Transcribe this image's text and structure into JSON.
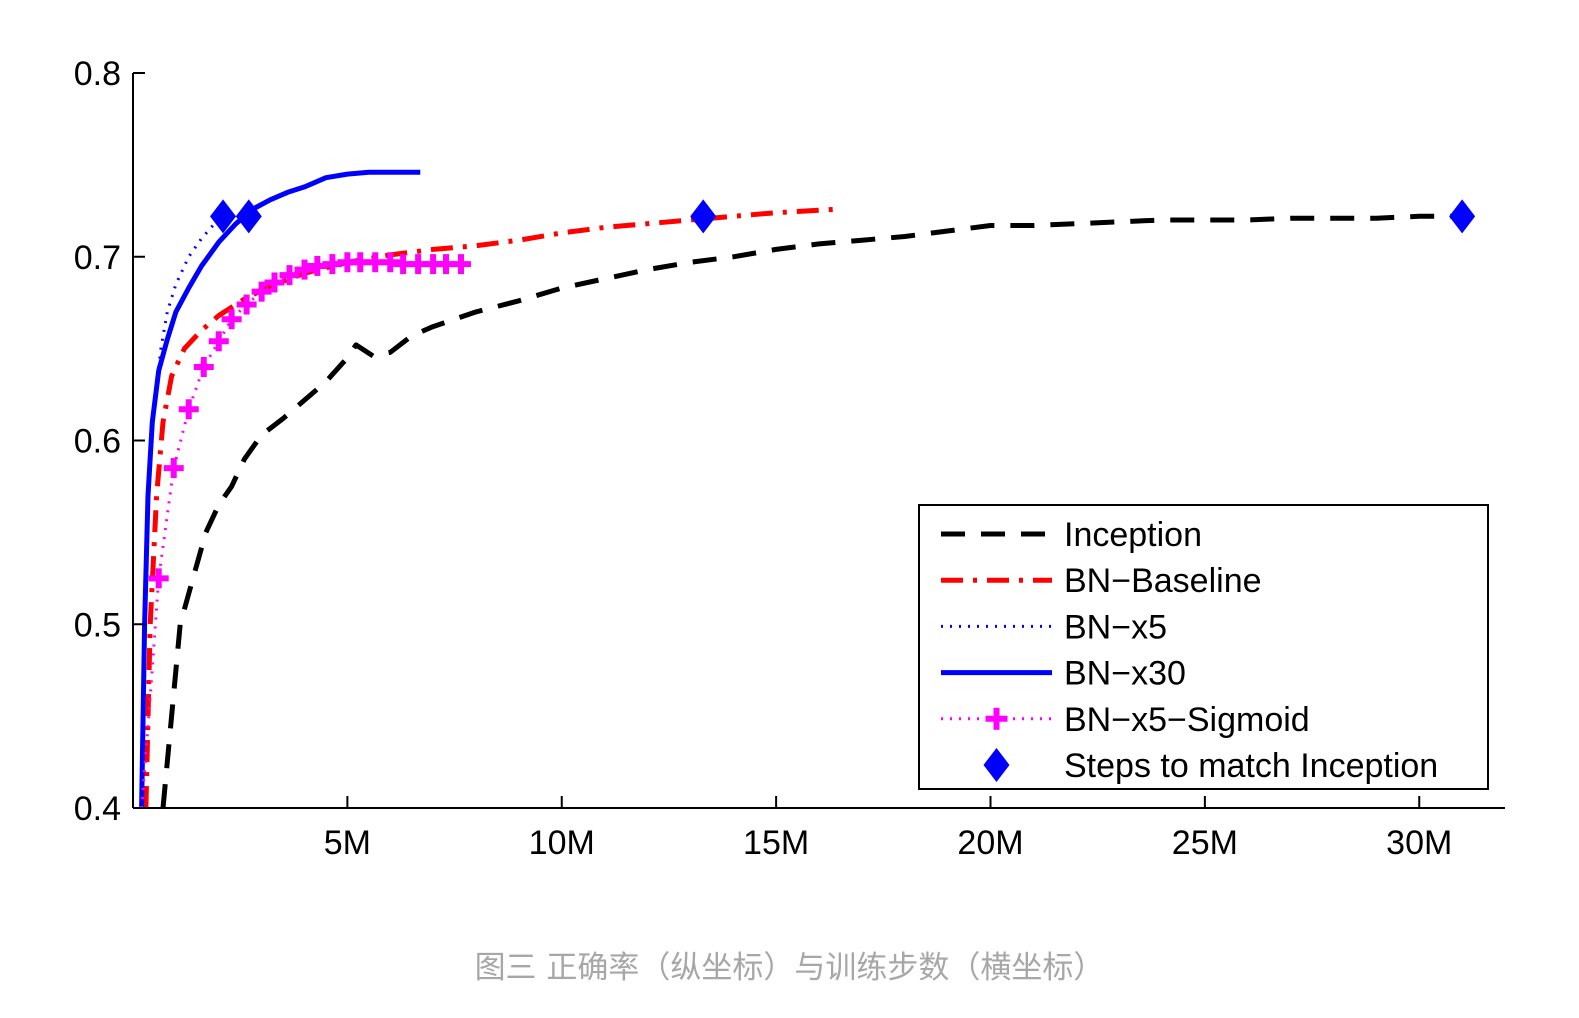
{
  "chart_data": {
    "type": "line",
    "title": "",
    "xlabel": "",
    "ylabel": "",
    "xlim": [
      0,
      32000000
    ],
    "ylim": [
      0.4,
      0.8
    ],
    "x_ticks": [
      {
        "value": 5000000,
        "label": "5M"
      },
      {
        "value": 10000000,
        "label": "10M"
      },
      {
        "value": 15000000,
        "label": "15M"
      },
      {
        "value": 20000000,
        "label": "20M"
      },
      {
        "value": 25000000,
        "label": "25M"
      },
      {
        "value": 30000000,
        "label": "30M"
      }
    ],
    "y_ticks": [
      {
        "value": 0.4,
        "label": "0.4"
      },
      {
        "value": 0.5,
        "label": "0.5"
      },
      {
        "value": 0.6,
        "label": "0.6"
      },
      {
        "value": 0.7,
        "label": "0.7"
      },
      {
        "value": 0.8,
        "label": "0.8"
      }
    ],
    "grid": false,
    "legend_position": "bottom-right",
    "series": [
      {
        "name": "Inception",
        "color": "#000000",
        "style": "dashed",
        "x": [
          700000,
          900000,
          1100000,
          1400000,
          1700000,
          2000000,
          2300000,
          2600000,
          3000000,
          3500000,
          4000000,
          4500000,
          5000000,
          5200000,
          5600000,
          6000000,
          6500000,
          7000000,
          7500000,
          8000000,
          9000000,
          10000000,
          11000000,
          12000000,
          13000000,
          14000000,
          15000000,
          16000000,
          17000000,
          18000000,
          19000000,
          20000000,
          21000000,
          22000000,
          23000000,
          24000000,
          25000000,
          26000000,
          27000000,
          28000000,
          29000000,
          30000000,
          31000000
        ],
        "y": [
          0.4,
          0.45,
          0.5,
          0.525,
          0.55,
          0.565,
          0.575,
          0.59,
          0.603,
          0.612,
          0.622,
          0.632,
          0.645,
          0.652,
          0.646,
          0.648,
          0.657,
          0.662,
          0.666,
          0.67,
          0.676,
          0.683,
          0.688,
          0.693,
          0.697,
          0.7,
          0.704,
          0.707,
          0.709,
          0.711,
          0.714,
          0.717,
          0.717,
          0.718,
          0.719,
          0.72,
          0.72,
          0.72,
          0.721,
          0.721,
          0.721,
          0.722,
          0.722
        ]
      },
      {
        "name": "BN−Baseline",
        "color": "#ff0000",
        "style": "dashdot",
        "x": [
          300000,
          400000,
          550000,
          700000,
          900000,
          1200000,
          1600000,
          2000000,
          2600000,
          3200000,
          4000000,
          5000000,
          6000000,
          7000000,
          8000000,
          9000000,
          10000000,
          11000000,
          12000000,
          13000000,
          14000000,
          15000000,
          16500000
        ],
        "y": [
          0.4,
          0.5,
          0.57,
          0.61,
          0.635,
          0.65,
          0.66,
          0.668,
          0.677,
          0.684,
          0.691,
          0.697,
          0.701,
          0.704,
          0.706,
          0.709,
          0.713,
          0.716,
          0.718,
          0.72,
          0.722,
          0.724,
          0.726
        ]
      },
      {
        "name": "BN−x5",
        "color": "#0000ff",
        "style": "dotted",
        "x": [
          200000,
          280000,
          380000,
          500000,
          650000,
          800000,
          1000000,
          1300000,
          1600000,
          1900000,
          2100000
        ],
        "y": [
          0.4,
          0.5,
          0.58,
          0.62,
          0.65,
          0.67,
          0.685,
          0.7,
          0.71,
          0.718,
          0.722
        ]
      },
      {
        "name": "BN−x30",
        "color": "#0000ff",
        "style": "solid",
        "x": [
          200000,
          270000,
          350000,
          450000,
          600000,
          800000,
          1000000,
          1300000,
          1600000,
          2000000,
          2400000,
          2800000,
          3200000,
          3600000,
          4000000,
          4500000,
          5000000,
          5500000,
          6000000,
          6500000,
          6700000
        ],
        "y": [
          0.4,
          0.5,
          0.57,
          0.61,
          0.638,
          0.655,
          0.67,
          0.683,
          0.695,
          0.708,
          0.718,
          0.726,
          0.731,
          0.735,
          0.738,
          0.743,
          0.745,
          0.746,
          0.746,
          0.746,
          0.746
        ]
      },
      {
        "name": "BN−x5−Sigmoid",
        "color": "#ff00ff",
        "style": "dotted-plus",
        "x": [
          200000,
          400000,
          600000,
          950000,
          1300000,
          1650000,
          2000000,
          2300000,
          2650000,
          3000000,
          3300000,
          3650000,
          4000000,
          4300000,
          4650000,
          5000000,
          5300000,
          5650000,
          6000000,
          6300000,
          6650000,
          7000000,
          7300000,
          7650000
        ],
        "y": [
          0.4,
          0.46,
          0.525,
          0.585,
          0.617,
          0.64,
          0.654,
          0.666,
          0.674,
          0.681,
          0.686,
          0.69,
          0.693,
          0.695,
          0.696,
          0.697,
          0.697,
          0.697,
          0.697,
          0.696,
          0.696,
          0.696,
          0.696,
          0.696
        ]
      }
    ],
    "markers": {
      "name": "Steps to match Inception",
      "color": "#0000ff",
      "shape": "diamond",
      "points": [
        {
          "x": 2100000,
          "y": 0.722
        },
        {
          "x": 2700000,
          "y": 0.722
        },
        {
          "x": 13300000,
          "y": 0.722
        },
        {
          "x": 31000000,
          "y": 0.722
        }
      ]
    }
  },
  "caption": "图三 正确率（纵坐标）与训练步数（横坐标）"
}
